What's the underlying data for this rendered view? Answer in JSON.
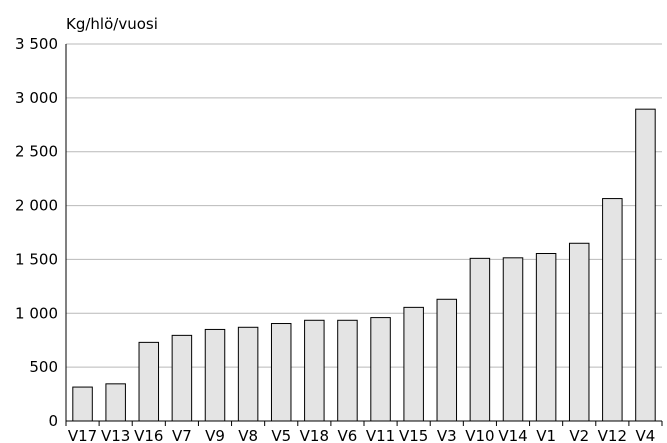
{
  "chart_data": {
    "type": "bar",
    "ylabel": "Kg/hlö/vuosi",
    "categories": [
      "V17",
      "V13",
      "V16",
      "V7",
      "V9",
      "V8",
      "V5",
      "V18",
      "V6",
      "V11",
      "V15",
      "V3",
      "V10",
      "V14",
      "V1",
      "V2",
      "V12",
      "V4"
    ],
    "values": [
      315,
      345,
      730,
      795,
      850,
      870,
      905,
      935,
      935,
      960,
      1055,
      1130,
      1510,
      1515,
      1555,
      1650,
      2065,
      2895
    ],
    "ylim": [
      0,
      3500
    ],
    "yticks": [
      0,
      500,
      1000,
      1500,
      2000,
      2500,
      3000,
      3500
    ],
    "ytick_labels": [
      "0",
      "500",
      "1 000",
      "1 500",
      "2 000",
      "2 500",
      "3 000",
      "3 500"
    ],
    "grid": true,
    "colors": {
      "bar_fill": "#e4e4e4",
      "bar_stroke": "#000000",
      "grid": "#b9b9b9"
    }
  }
}
